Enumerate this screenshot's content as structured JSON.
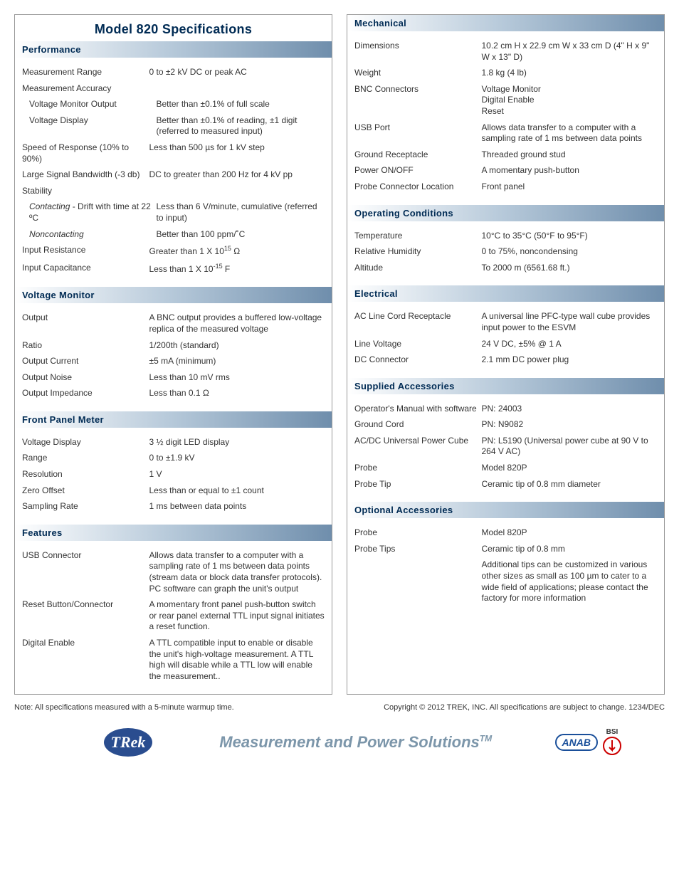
{
  "title": "Model 820 Specifications",
  "left": [
    {
      "heading": "Performance",
      "rows": [
        {
          "label": "Measurement Range",
          "value": "0 to ±2 kV DC or peak AC"
        },
        {
          "label": "Measurement Accuracy",
          "value": ""
        },
        {
          "label": "Voltage Monitor Output",
          "value": "Better than ±0.1% of full scale",
          "sub": true
        },
        {
          "label": "Voltage Display",
          "value": "Better than ±0.1% of reading, ±1 digit (referred to measured input)",
          "sub": true
        },
        {
          "label": "Speed of Response (10% to 90%)",
          "value": "Less than 500 µs for 1 kV step"
        },
        {
          "label": "Large Signal Bandwidth (-3 db)",
          "value": "DC to greater than 200 Hz for 4 kV pp"
        },
        {
          "label": "Stability",
          "value": ""
        },
        {
          "labelHtml": "<span class='italic'>Contacting</span> - Drift with time at 22 ºC",
          "value": "Less than 6 V/minute, cumulative (referred to input)",
          "sub": true
        },
        {
          "labelHtml": "<span class='italic'>Noncontacting</span>",
          "value": "Better than 100 ppm/˚C",
          "sub": true
        },
        {
          "label": "Input Resistance",
          "valueHtml": "Greater than 1 X 10<sup>15</sup> Ω"
        },
        {
          "label": "Input Capacitance",
          "valueHtml": "Less than 1 X 10<sup>-15</sup> F"
        }
      ]
    },
    {
      "heading": "Voltage Monitor",
      "rows": [
        {
          "label": "Output",
          "value": "A BNC output provides a buffered low-voltage replica of the measured voltage"
        },
        {
          "label": "Ratio",
          "value": "1/200th (standard)"
        },
        {
          "label": "Output Current",
          "value": "±5 mA (minimum)"
        },
        {
          "label": "Output Noise",
          "value": "Less than 10 mV rms"
        },
        {
          "label": "Output Impedance",
          "value": "Less than 0.1 Ω"
        }
      ]
    },
    {
      "heading": "Front Panel Meter",
      "rows": [
        {
          "label": "Voltage Display",
          "value": "3 ½ digit LED display"
        },
        {
          "label": "Range",
          "value": "0 to ±1.9 kV"
        },
        {
          "label": "Resolution",
          "value": "1 V"
        },
        {
          "label": "Zero Offset",
          "value": "Less than or equal to ±1 count"
        },
        {
          "label": "Sampling Rate",
          "value": "1 ms between data points"
        }
      ]
    },
    {
      "heading": "Features",
      "rows": [
        {
          "label": "USB Connector",
          "value": "Allows data transfer to a computer with a sampling rate of 1 ms between data points (stream data or block data transfer protocols). PC software can graph the unit's output"
        },
        {
          "label": "Reset Button/Connector",
          "value": "A momentary front panel push-button switch or rear panel external TTL input signal initiates a reset function."
        },
        {
          "label": "Digital Enable",
          "value": "A TTL compatible input to enable or disable the unit's high-voltage measurement.  A TTL high will disable while a TTL low will enable the measurement.."
        }
      ]
    }
  ],
  "right": [
    {
      "heading": "Mechanical",
      "rows": [
        {
          "label": "Dimensions",
          "value": "10.2 cm H x 22.9 cm W x 33 cm D (4\" H x 9\" W x 13\" D)"
        },
        {
          "label": "Weight",
          "value": "1.8 kg (4 lb)"
        },
        {
          "label": "BNC Connectors",
          "value": "Voltage Monitor\nDigital Enable\nReset"
        },
        {
          "label": "USB Port",
          "value": "Allows data transfer to a computer with a sampling rate of 1 ms between data points"
        },
        {
          "label": "Ground Receptacle",
          "value": "Threaded ground stud"
        },
        {
          "label": "Power ON/OFF",
          "value": "A momentary push-button"
        },
        {
          "label": "Probe Connector Location",
          "value": "Front panel"
        }
      ]
    },
    {
      "heading": "Operating Conditions",
      "rows": [
        {
          "label": "Temperature",
          "value": "10°C to 35°C (50°F to 95°F)"
        },
        {
          "label": "Relative Humidity",
          "value": "0 to 75%, noncondensing"
        },
        {
          "label": "Altitude",
          "value": "To 2000 m (6561.68 ft.)"
        }
      ]
    },
    {
      "heading": "Electrical",
      "rows": [
        {
          "label": "AC Line Cord Receptacle",
          "value": "A universal line PFC-type wall cube provides input power to the ESVM"
        },
        {
          "label": "Line Voltage",
          "value": "24 V DC, ±5% @ 1 A"
        },
        {
          "label": "DC Connector",
          "value": "2.1 mm DC power plug"
        }
      ]
    },
    {
      "heading": "Supplied  Accessories",
      "rows": [
        {
          "label": "Operator's Manual with software",
          "value": "PN: 24003"
        },
        {
          "label": "Ground Cord",
          "value": "PN: N9082"
        },
        {
          "label": "AC/DC Universal Power Cube",
          "value": "PN: L5190 (Universal power cube at 90 V to 264 V AC)"
        },
        {
          "label": "Probe",
          "value": "Model 820P"
        },
        {
          "label": "Probe Tip",
          "value": "Ceramic tip of 0.8 mm diameter"
        }
      ]
    },
    {
      "heading": "Optional Accessories",
      "rows": [
        {
          "label": "Probe",
          "value": "Model 820P"
        },
        {
          "label": "Probe Tips",
          "value": "Ceramic tip of 0.8 mm"
        },
        {
          "label": "",
          "value": "Additional tips can be customized in various other sizes as small as 100 µm to cater to a wide field of applications; please contact the factory for more information"
        }
      ]
    }
  ],
  "note_left": "Note: All specifications measured with a 5-minute warmup time.",
  "note_right": "Copyright © 2012 TREK, INC.  All specifications are subject to change. 1234/DEC",
  "tagline": "Measurement and Power Solutions",
  "anab": "ANAB",
  "bsi": "BSI"
}
